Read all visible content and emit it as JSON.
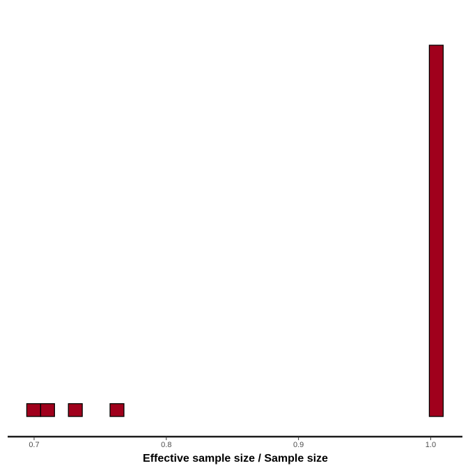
{
  "chart_data": {
    "type": "bar",
    "subtype": "histogram",
    "xlabel": "Effective sample size / Sample size",
    "ylabel": "",
    "title": "",
    "x_ticks": [
      0.7,
      0.8,
      0.9,
      1.0
    ],
    "x_tick_labels": [
      "0.7",
      "0.8",
      "0.9",
      "1.0"
    ],
    "xlim": [
      0.68,
      1.024
    ],
    "ylim": [
      0,
      30.9
    ],
    "bin_width": 0.0105,
    "bins": [
      {
        "x": 0.6997,
        "count": 1
      },
      {
        "x": 0.7102,
        "count": 1
      },
      {
        "x": 0.7207,
        "count": 0
      },
      {
        "x": 0.7312,
        "count": 1
      },
      {
        "x": 0.7417,
        "count": 0
      },
      {
        "x": 0.7522,
        "count": 0
      },
      {
        "x": 0.7627,
        "count": 1
      },
      {
        "x": 0.7732,
        "count": 0
      },
      {
        "x": 0.7837,
        "count": 0
      },
      {
        "x": 0.7942,
        "count": 0
      },
      {
        "x": 0.8047,
        "count": 0
      },
      {
        "x": 0.8152,
        "count": 0
      },
      {
        "x": 0.8257,
        "count": 0
      },
      {
        "x": 0.8362,
        "count": 0
      },
      {
        "x": 0.8467,
        "count": 0
      },
      {
        "x": 0.8572,
        "count": 0
      },
      {
        "x": 0.8677,
        "count": 0
      },
      {
        "x": 0.8782,
        "count": 0
      },
      {
        "x": 0.8887,
        "count": 0
      },
      {
        "x": 0.8992,
        "count": 0
      },
      {
        "x": 0.9097,
        "count": 0
      },
      {
        "x": 0.9202,
        "count": 0
      },
      {
        "x": 0.9307,
        "count": 0
      },
      {
        "x": 0.9412,
        "count": 0
      },
      {
        "x": 0.9517,
        "count": 0
      },
      {
        "x": 0.9622,
        "count": 0
      },
      {
        "x": 0.9727,
        "count": 0
      },
      {
        "x": 0.9832,
        "count": 0
      },
      {
        "x": 0.9937,
        "count": 0
      },
      {
        "x": 1.0042,
        "count": 29
      }
    ],
    "fill_color": "#a0001c",
    "outline_color": "#000000",
    "grid": false,
    "legend": "none"
  }
}
